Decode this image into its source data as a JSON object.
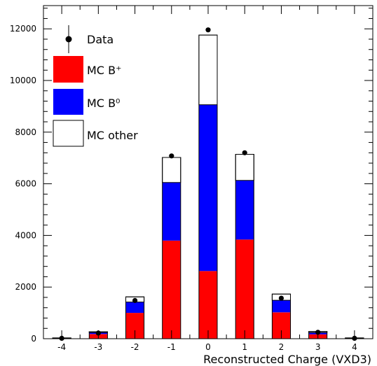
{
  "chart_data": {
    "type": "bar",
    "stacked": true,
    "title": "",
    "xlabel": "Reconstructed Charge (VXD3)",
    "ylabel": "",
    "categories": [
      "-4",
      "-3",
      "-2",
      "-1",
      "0",
      "1",
      "2",
      "3",
      "4"
    ],
    "x": [
      -4,
      -3,
      -2,
      -1,
      0,
      1,
      2,
      3,
      4
    ],
    "xlim": [
      -4.5,
      4.5
    ],
    "ylim": [
      0,
      12900
    ],
    "yticks": [
      0,
      2000,
      4000,
      6000,
      8000,
      10000,
      12000
    ],
    "ytick_labels": [
      "0",
      "2000",
      "4000",
      "6000",
      "8000",
      "10000",
      "12000"
    ],
    "grid": false,
    "legend_position": "top-left",
    "series": [
      {
        "name": "MC B⁺",
        "color": "#ff0000",
        "values": [
          20,
          180,
          1000,
          3800,
          2620,
          3840,
          1020,
          170,
          20
        ]
      },
      {
        "name": "MC B⁰",
        "color": "#0000ff",
        "values": [
          5,
          60,
          420,
          2250,
          6440,
          2290,
          470,
          70,
          5
        ]
      },
      {
        "name": "MC other",
        "color": "#ffffff",
        "values": [
          5,
          30,
          200,
          970,
          2700,
          1010,
          240,
          40,
          5
        ]
      }
    ],
    "data_points": {
      "name": "Data",
      "values": [
        15,
        220,
        1480,
        7080,
        11960,
        7200,
        1570,
        250,
        15
      ]
    }
  }
}
